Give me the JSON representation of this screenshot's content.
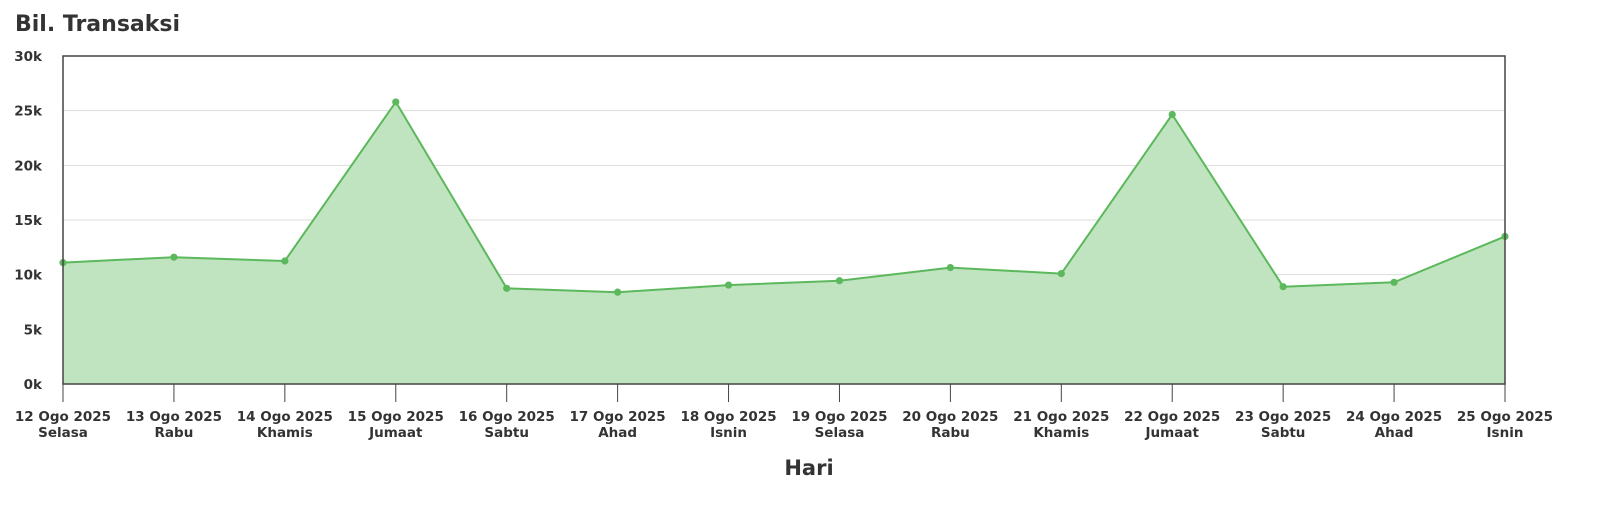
{
  "chart_data": {
    "type": "area",
    "title": "Bil. Transaksi",
    "xlabel": "Hari",
    "ylabel": "",
    "ylim": [
      0,
      30000
    ],
    "y_ticks": [
      {
        "value": 0,
        "label": "0k"
      },
      {
        "value": 5000,
        "label": "5k"
      },
      {
        "value": 10000,
        "label": "10k"
      },
      {
        "value": 15000,
        "label": "15k"
      },
      {
        "value": 20000,
        "label": "20k"
      },
      {
        "value": 25000,
        "label": "25k"
      },
      {
        "value": 30000,
        "label": "30k"
      }
    ],
    "categories": [
      {
        "date": "12 Ogo 2025",
        "day": "Selasa"
      },
      {
        "date": "13 Ogo 2025",
        "day": "Rabu"
      },
      {
        "date": "14 Ogo 2025",
        "day": "Khamis"
      },
      {
        "date": "15 Ogo 2025",
        "day": "Jumaat"
      },
      {
        "date": "16 Ogo 2025",
        "day": "Sabtu"
      },
      {
        "date": "17 Ogo 2025",
        "day": "Ahad"
      },
      {
        "date": "18 Ogo 2025",
        "day": "Isnin"
      },
      {
        "date": "19 Ogo 2025",
        "day": "Selasa"
      },
      {
        "date": "20 Ogo 2025",
        "day": "Rabu"
      },
      {
        "date": "21 Ogo 2025",
        "day": "Khamis"
      },
      {
        "date": "22 Ogo 2025",
        "day": "Jumaat"
      },
      {
        "date": "23 Ogo 2025",
        "day": "Sabtu"
      },
      {
        "date": "24 Ogo 2025",
        "day": "Ahad"
      },
      {
        "date": "25 Ogo 2025",
        "day": "Isnin"
      }
    ],
    "values": [
      11100,
      11600,
      11250,
      25800,
      8750,
      8400,
      9050,
      9450,
      10650,
      10100,
      24650,
      8900,
      9300,
      13500
    ],
    "grid": true,
    "legend": "none",
    "colors": {
      "line": "#5cb85c",
      "fill": "#c0e4bf",
      "grid": "#dddddd",
      "frame": "#444444",
      "text": "#333333"
    }
  }
}
